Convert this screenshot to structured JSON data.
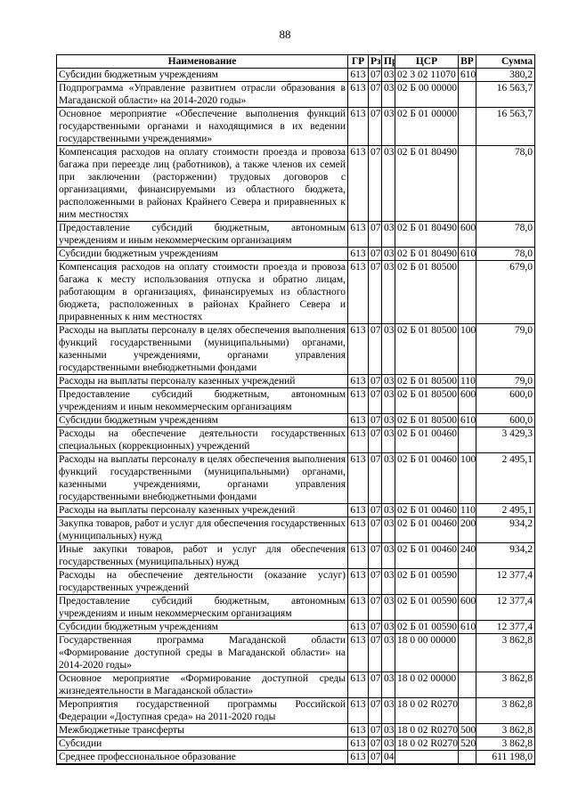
{
  "page": {
    "number": "88"
  },
  "colors": {
    "text": "#000000",
    "background": "#ffffff",
    "table_border": "#000000"
  },
  "table": {
    "headers": {
      "name": "Наименование",
      "gr": "ГР",
      "rz": "Рз",
      "pr": "Пр",
      "csr": "ЦСР",
      "vr": "ВР",
      "sum": "Сумма"
    },
    "rows": [
      {
        "name": "Субсидии бюджетным учреждениям",
        "gr": "613",
        "rz": "07",
        "pr": "03",
        "csr": "02 3 02 11070",
        "vr": "610",
        "sum": "380,2"
      },
      {
        "name": "Подпрограмма «Управление развитием отрасли образования в Магаданской области» на 2014-2020 годы»",
        "gr": "613",
        "rz": "07",
        "pr": "03",
        "csr": "02 Б 00 00000",
        "vr": "",
        "sum": "16 563,7"
      },
      {
        "name": "Основное мероприятие «Обеспечение выполнения функций государственными органами и находящимися в их ведении государственными учреждениями»",
        "gr": "613",
        "rz": "07",
        "pr": "03",
        "csr": "02 Б 01 00000",
        "vr": "",
        "sum": "16 563,7"
      },
      {
        "name": "Компенсация расходов на оплату стоимости проезда и провоза багажа при переезде лиц (работников), а также членов их семей при заключении (расторжении) трудовых договоров с организациями, финансируемыми из областного бюджета, расположенными в районах Крайнего Севера и приравненных к ним местностях",
        "gr": "613",
        "rz": "07",
        "pr": "03",
        "csr": "02 Б 01 80490",
        "vr": "",
        "sum": "78,0"
      },
      {
        "name": "Предоставление субсидий бюджетным, автономным учреждениям и иным некоммерческим организациям",
        "gr": "613",
        "rz": "07",
        "pr": "03",
        "csr": "02 Б 01 80490",
        "vr": "600",
        "sum": "78,0"
      },
      {
        "name": "Субсидии бюджетным учреждениям",
        "gr": "613",
        "rz": "07",
        "pr": "03",
        "csr": "02 Б 01 80490",
        "vr": "610",
        "sum": "78,0"
      },
      {
        "name": "Компенсация расходов на оплату стоимости проезда и провоза багажа к месту использования отпуска и обратно лицам, работающим в организациях, финансируемых из областного бюджета, расположенных в районах Крайнего Севера и приравненных к ним местностях",
        "gr": "613",
        "rz": "07",
        "pr": "03",
        "csr": "02 Б 01 80500",
        "vr": "",
        "sum": "679,0"
      },
      {
        "name": "Расходы на выплаты персоналу в целях обеспечения выполнения функций государственными (муниципальными) органами, казенными учреждениями, органами управления государственными внебюджетными фондами",
        "gr": "613",
        "rz": "07",
        "pr": "03",
        "csr": "02 Б 01 80500",
        "vr": "100",
        "sum": "79,0"
      },
      {
        "name": "Расходы на выплаты персоналу казенных учреждений",
        "gr": "613",
        "rz": "07",
        "pr": "03",
        "csr": "02 Б 01 80500",
        "vr": "110",
        "sum": "79,0"
      },
      {
        "name": "Предоставление субсидий бюджетным, автономным учреждениям и иным некоммерческим организациям",
        "gr": "613",
        "rz": "07",
        "pr": "03",
        "csr": "02 Б 01 80500",
        "vr": "600",
        "sum": "600,0"
      },
      {
        "name": "Субсидии бюджетным учреждениям",
        "gr": "613",
        "rz": "07",
        "pr": "03",
        "csr": "02 Б 01 80500",
        "vr": "610",
        "sum": "600,0"
      },
      {
        "name": "Расходы на обеспечение деятельности государственных специальных (коррекционных) учреждений",
        "gr": "613",
        "rz": "07",
        "pr": "03",
        "csr": "02 Б 01 00460",
        "vr": "",
        "sum": "3 429,3"
      },
      {
        "name": "Расходы на выплаты персоналу в целях обеспечения выполнения функций государственными (муниципальными) органами, казенными учреждениями, органами управления государственными внебюджетными фондами",
        "gr": "613",
        "rz": "07",
        "pr": "03",
        "csr": "02 Б 01 00460",
        "vr": "100",
        "sum": "2 495,1"
      },
      {
        "name": "Расходы на выплаты персоналу казенных учреждений",
        "gr": "613",
        "rz": "07",
        "pr": "03",
        "csr": "02 Б 01 00460",
        "vr": "110",
        "sum": "2 495,1"
      },
      {
        "name": "Закупка товаров, работ и услуг для обеспечения государственных (муниципальных) нужд",
        "gr": "613",
        "rz": "07",
        "pr": "03",
        "csr": "02 Б 01 00460",
        "vr": "200",
        "sum": "934,2"
      },
      {
        "name": "Иные закупки товаров, работ и услуг для обеспечения государственных (муниципальных) нужд",
        "gr": "613",
        "rz": "07",
        "pr": "03",
        "csr": "02 Б 01 00460",
        "vr": "240",
        "sum": "934,2"
      },
      {
        "name": "Расходы на обеспечение деятельности (оказание услуг) государственных учреждений",
        "gr": "613",
        "rz": "07",
        "pr": "03",
        "csr": "02 Б 01 00590",
        "vr": "",
        "sum": "12 377,4"
      },
      {
        "name": "Предоставление субсидий бюджетным, автономным учреждениям и иным некоммерческим организациям",
        "gr": "613",
        "rz": "07",
        "pr": "03",
        "csr": "02 Б 01 00590",
        "vr": "600",
        "sum": "12 377,4"
      },
      {
        "name": "Субсидии бюджетным учреждениям",
        "gr": "613",
        "rz": "07",
        "pr": "03",
        "csr": "02 Б 01 00590",
        "vr": "610",
        "sum": "12 377,4"
      },
      {
        "name": "Государственная программа Магаданской области «Формирование доступной среды в Магаданской области» на 2014-2020 годы»",
        "gr": "613",
        "rz": "07",
        "pr": "03",
        "csr": "18 0 00 00000",
        "vr": "",
        "sum": "3 862,8"
      },
      {
        "name": "Основное мероприятие «Формирование доступной среды жизнедеятельности в Магаданской области»",
        "gr": "613",
        "rz": "07",
        "pr": "03",
        "csr": "18 0 02 00000",
        "vr": "",
        "sum": "3 862,8"
      },
      {
        "name": "Мероприятия государственной программы Российской Федерации «Доступная среда» на 2011-2020 годы",
        "gr": "613",
        "rz": "07",
        "pr": "03",
        "csr": "18 0 02 R0270",
        "vr": "",
        "sum": "3 862,8"
      },
      {
        "name": "Межбюджетные трансферты",
        "gr": "613",
        "rz": "07",
        "pr": "03",
        "csr": "18 0 02 R0270",
        "vr": "500",
        "sum": "3 862,8"
      },
      {
        "name": "Субсидии",
        "gr": "613",
        "rz": "07",
        "pr": "03",
        "csr": "18 0 02 R0270",
        "vr": "520",
        "sum": "3 862,8"
      },
      {
        "name": "Среднее профессиональное образование",
        "gr": "613",
        "rz": "07",
        "pr": "04",
        "csr": "",
        "vr": "",
        "sum": "611 198,0"
      }
    ]
  }
}
